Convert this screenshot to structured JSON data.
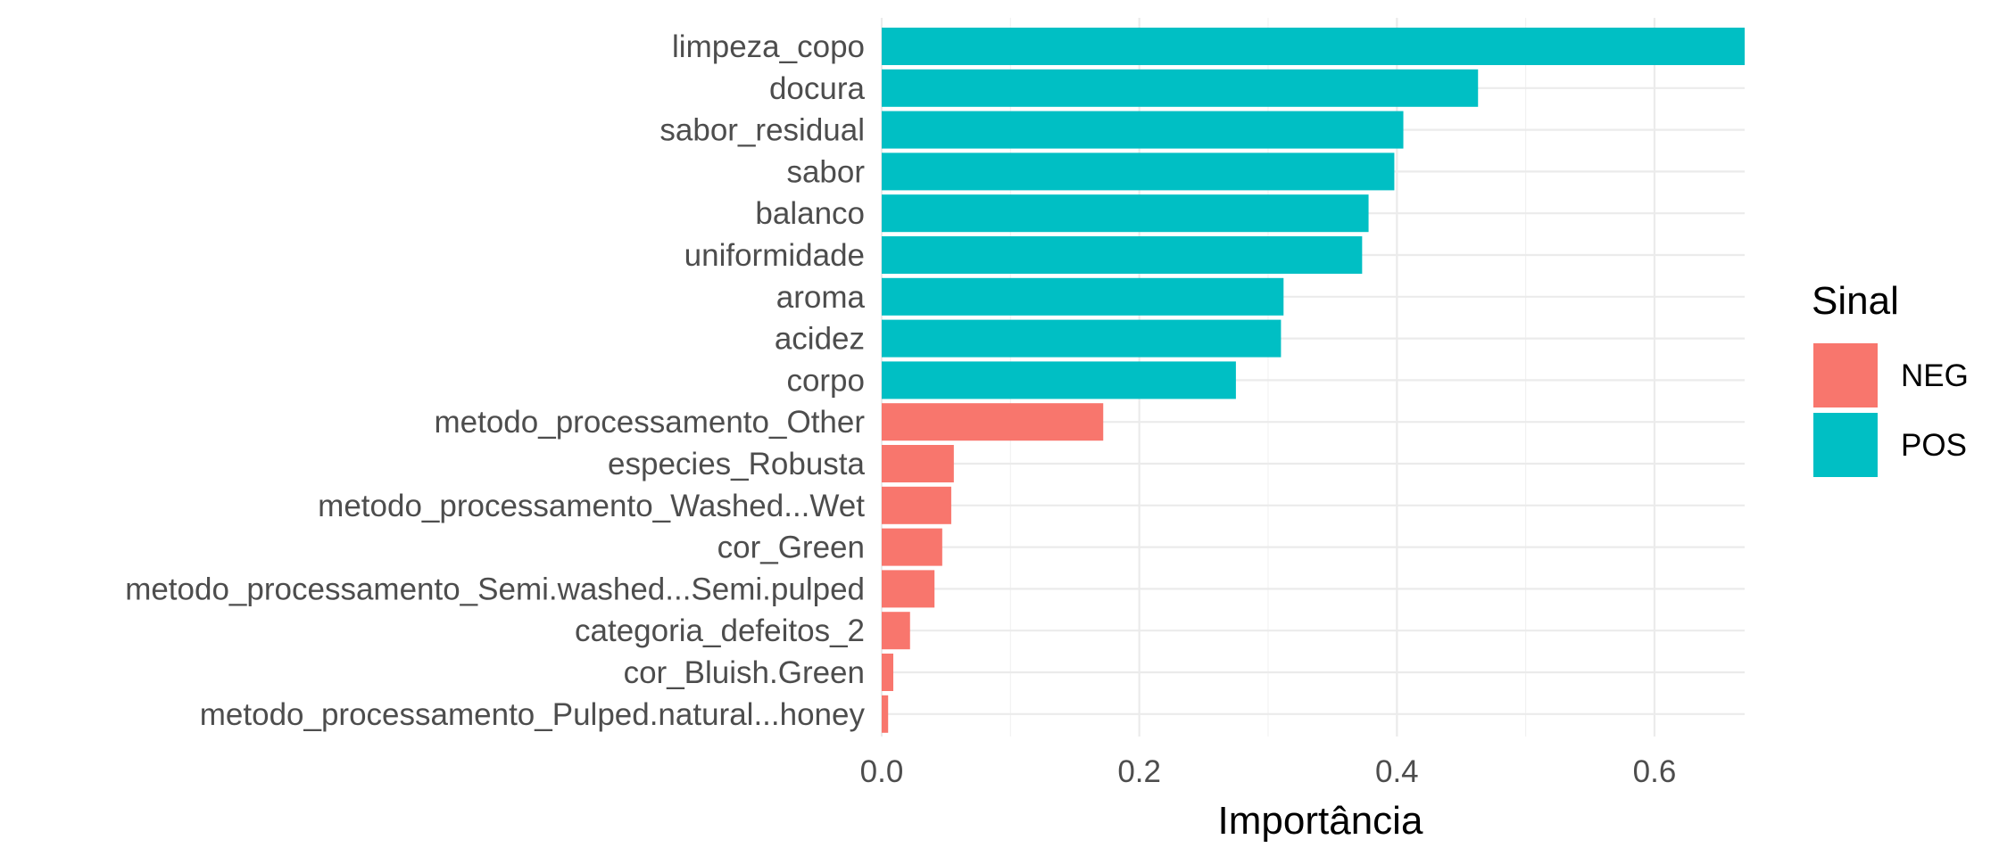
{
  "chart_data": {
    "type": "bar",
    "orientation": "horizontal",
    "title": "",
    "xlabel": "Importância",
    "ylabel": "",
    "xlim": [
      0,
      0.67
    ],
    "x_ticks": [
      0.0,
      0.2,
      0.4,
      0.6
    ],
    "x_tick_labels": [
      "0.0",
      "0.2",
      "0.4",
      "0.6"
    ],
    "grid": true,
    "legend": {
      "title": "Sinal",
      "placement": "right",
      "entries": [
        {
          "label": "NEG",
          "color": "#F8766D"
        },
        {
          "label": "POS",
          "color": "#00BFC4"
        }
      ]
    },
    "categories": [
      "limpeza_copo",
      "docura",
      "sabor_residual",
      "sabor",
      "balanco",
      "uniformidade",
      "aroma",
      "acidez",
      "corpo",
      "metodo_processamento_Other",
      "especies_Robusta",
      "metodo_processamento_Washed...Wet",
      "cor_Green",
      "metodo_processamento_Semi.washed...Semi.pulped",
      "categoria_defeitos_2",
      "cor_Bluish.Green",
      "metodo_processamento_Pulped.natural...honey"
    ],
    "values": [
      0.67,
      0.463,
      0.405,
      0.398,
      0.378,
      0.373,
      0.312,
      0.31,
      0.275,
      0.172,
      0.056,
      0.054,
      0.047,
      0.041,
      0.022,
      0.009,
      0.005
    ],
    "signs": [
      "POS",
      "POS",
      "POS",
      "POS",
      "POS",
      "POS",
      "POS",
      "POS",
      "POS",
      "NEG",
      "NEG",
      "NEG",
      "NEG",
      "NEG",
      "NEG",
      "NEG",
      "NEG"
    ]
  }
}
